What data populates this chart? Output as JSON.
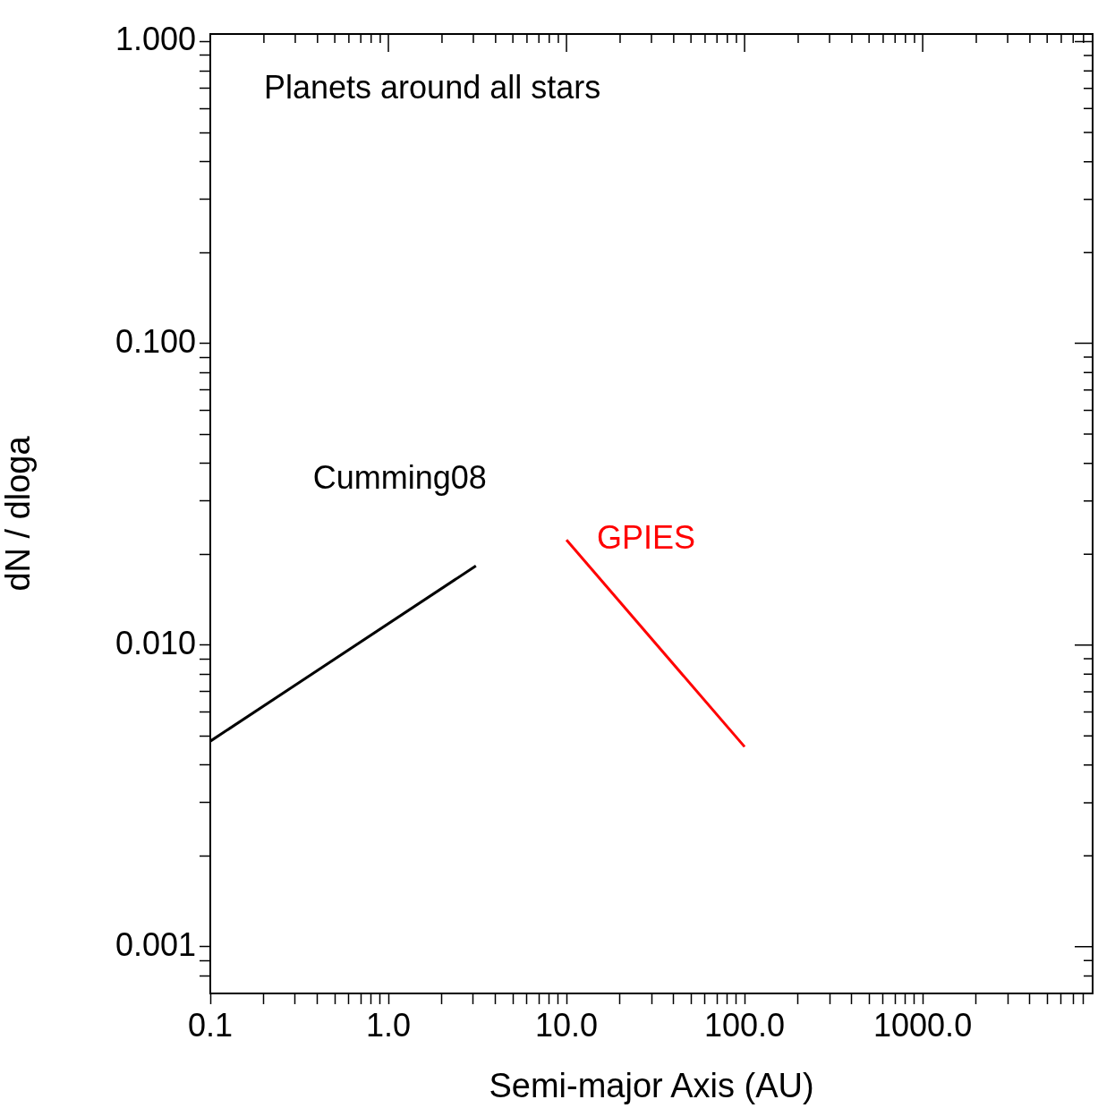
{
  "chart_data": {
    "type": "line",
    "xlabel": "Semi-major Axis (AU)",
    "ylabel": "dN / dloga",
    "annotations": [
      "Planets around all stars"
    ],
    "log": "xy",
    "grid": false,
    "legend": false,
    "marker": "none",
    "line_style": "solid",
    "xlim": [
      0.1,
      9000
    ],
    "ylim": [
      0.0007,
      1.06
    ],
    "xticks": [
      {
        "value": 0.1,
        "label": "0.1"
      },
      {
        "value": 0.2,
        "label": null
      },
      {
        "value": 0.3,
        "label": null
      },
      {
        "value": 0.4,
        "label": null
      },
      {
        "value": 0.5,
        "label": null
      },
      {
        "value": 0.6,
        "label": null
      },
      {
        "value": 0.7,
        "label": null
      },
      {
        "value": 0.8,
        "label": null
      },
      {
        "value": 0.9,
        "label": null
      },
      {
        "value": 1,
        "label": "1.0"
      },
      {
        "value": 2,
        "label": null
      },
      {
        "value": 3,
        "label": null
      },
      {
        "value": 4,
        "label": null
      },
      {
        "value": 5,
        "label": null
      },
      {
        "value": 6,
        "label": null
      },
      {
        "value": 7,
        "label": null
      },
      {
        "value": 8,
        "label": null
      },
      {
        "value": 9,
        "label": null
      },
      {
        "value": 10,
        "label": "10.0"
      },
      {
        "value": 20,
        "label": null
      },
      {
        "value": 30,
        "label": null
      },
      {
        "value": 40,
        "label": null
      },
      {
        "value": 50,
        "label": null
      },
      {
        "value": 60,
        "label": null
      },
      {
        "value": 70,
        "label": null
      },
      {
        "value": 80,
        "label": null
      },
      {
        "value": 90,
        "label": null
      },
      {
        "value": 100,
        "label": "100.0"
      },
      {
        "value": 200,
        "label": null
      },
      {
        "value": 300,
        "label": null
      },
      {
        "value": 400,
        "label": null
      },
      {
        "value": 500,
        "label": null
      },
      {
        "value": 600,
        "label": null
      },
      {
        "value": 700,
        "label": null
      },
      {
        "value": 800,
        "label": null
      },
      {
        "value": 900,
        "label": null
      },
      {
        "value": 1000,
        "label": "1000.0"
      },
      {
        "value": 2000,
        "label": null
      },
      {
        "value": 3000,
        "label": null
      },
      {
        "value": 4000,
        "label": null
      },
      {
        "value": 5000,
        "label": null
      },
      {
        "value": 6000,
        "label": null
      },
      {
        "value": 7000,
        "label": null
      },
      {
        "value": 8000,
        "label": null
      }
    ],
    "yticks": [
      {
        "value": 0.0008,
        "label": null
      },
      {
        "value": 0.0009,
        "label": null
      },
      {
        "value": 0.001,
        "label": "0.001"
      },
      {
        "value": 0.002,
        "label": null
      },
      {
        "value": 0.003,
        "label": null
      },
      {
        "value": 0.004,
        "label": null
      },
      {
        "value": 0.005,
        "label": null
      },
      {
        "value": 0.006,
        "label": null
      },
      {
        "value": 0.007,
        "label": null
      },
      {
        "value": 0.008,
        "label": null
      },
      {
        "value": 0.009,
        "label": null
      },
      {
        "value": 0.01,
        "label": "0.010"
      },
      {
        "value": 0.02,
        "label": null
      },
      {
        "value": 0.03,
        "label": null
      },
      {
        "value": 0.04,
        "label": null
      },
      {
        "value": 0.05,
        "label": null
      },
      {
        "value": 0.06,
        "label": null
      },
      {
        "value": 0.07,
        "label": null
      },
      {
        "value": 0.08,
        "label": null
      },
      {
        "value": 0.09,
        "label": null
      },
      {
        "value": 0.1,
        "label": "0.100"
      },
      {
        "value": 0.2,
        "label": null
      },
      {
        "value": 0.3,
        "label": null
      },
      {
        "value": 0.4,
        "label": null
      },
      {
        "value": 0.5,
        "label": null
      },
      {
        "value": 0.6,
        "label": null
      },
      {
        "value": 0.7,
        "label": null
      },
      {
        "value": 0.8,
        "label": null
      },
      {
        "value": 0.9,
        "label": null
      },
      {
        "value": 1,
        "label": "1.000"
      }
    ],
    "series": [
      {
        "name": "Cumming08",
        "color": "#000000",
        "x": [
          0.1,
          3.1
        ],
        "values": [
          0.0048,
          0.0183
        ]
      },
      {
        "name": "GPIES",
        "color": "#ff0000",
        "x": [
          10,
          100
        ],
        "values": [
          0.0223,
          0.0046
        ]
      }
    ]
  }
}
